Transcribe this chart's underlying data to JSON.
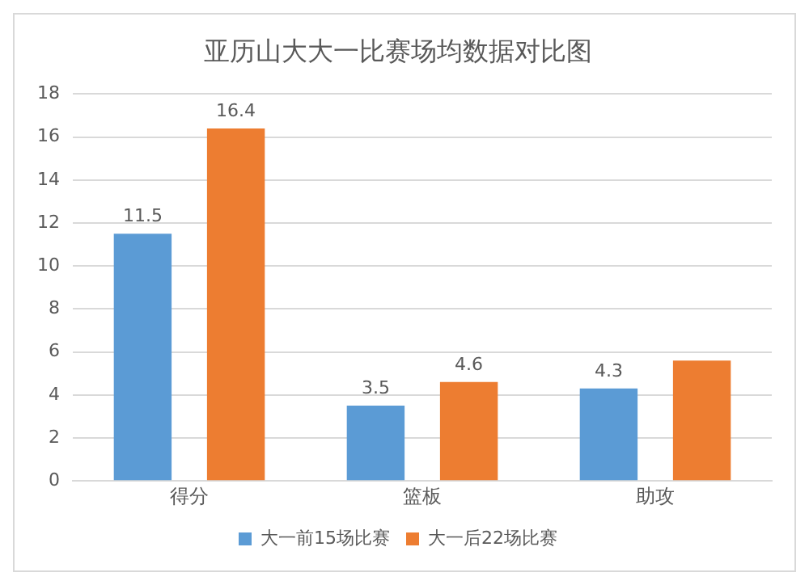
{
  "chart_data": {
    "type": "bar",
    "title": "亚历山大大一比赛场均数据对比图",
    "categories": [
      "得分",
      "篮板",
      "助攻"
    ],
    "series": [
      {
        "name": "大一前15场比赛",
        "color": "#5b9bd5",
        "values": [
          11.5,
          3.5,
          4.3
        ],
        "value_labels": [
          "11.5",
          "3.5",
          "4.3"
        ]
      },
      {
        "name": "大一后22场比赛",
        "color": "#ed7d31",
        "values": [
          16.4,
          4.6,
          5.6
        ],
        "value_labels": [
          "16.4",
          "4.6",
          null
        ]
      }
    ],
    "ylim": [
      0,
      18
    ],
    "yticks": [
      0,
      2,
      4,
      6,
      8,
      10,
      12,
      14,
      16,
      18
    ],
    "grid": "y",
    "legend": "bottom"
  }
}
